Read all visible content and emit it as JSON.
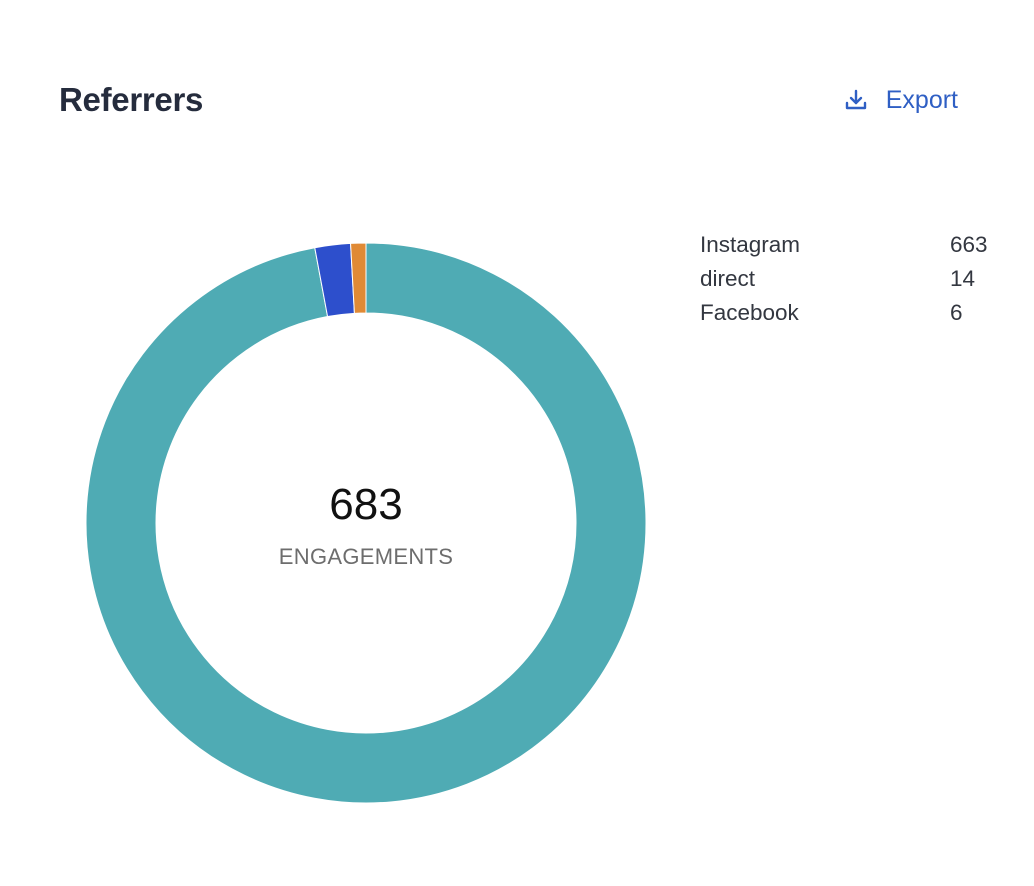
{
  "header": {
    "title": "Referrers",
    "export_label": "Export"
  },
  "icons": {
    "export": "download-icon"
  },
  "colors": {
    "accent": "#2f5fc4",
    "instagram": "#4fabb4",
    "direct": "#2d4fcc",
    "facebook": "#e08a35"
  },
  "chart_data": {
    "type": "pie",
    "donut": true,
    "categories": [
      "Instagram",
      "direct",
      "Facebook"
    ],
    "values": [
      663,
      14,
      6
    ],
    "colors": [
      "#4fabb4",
      "#2d4fcc",
      "#e08a35"
    ],
    "center_value": "683",
    "center_label": "ENGAGEMENTS",
    "legend_placement": "right"
  }
}
